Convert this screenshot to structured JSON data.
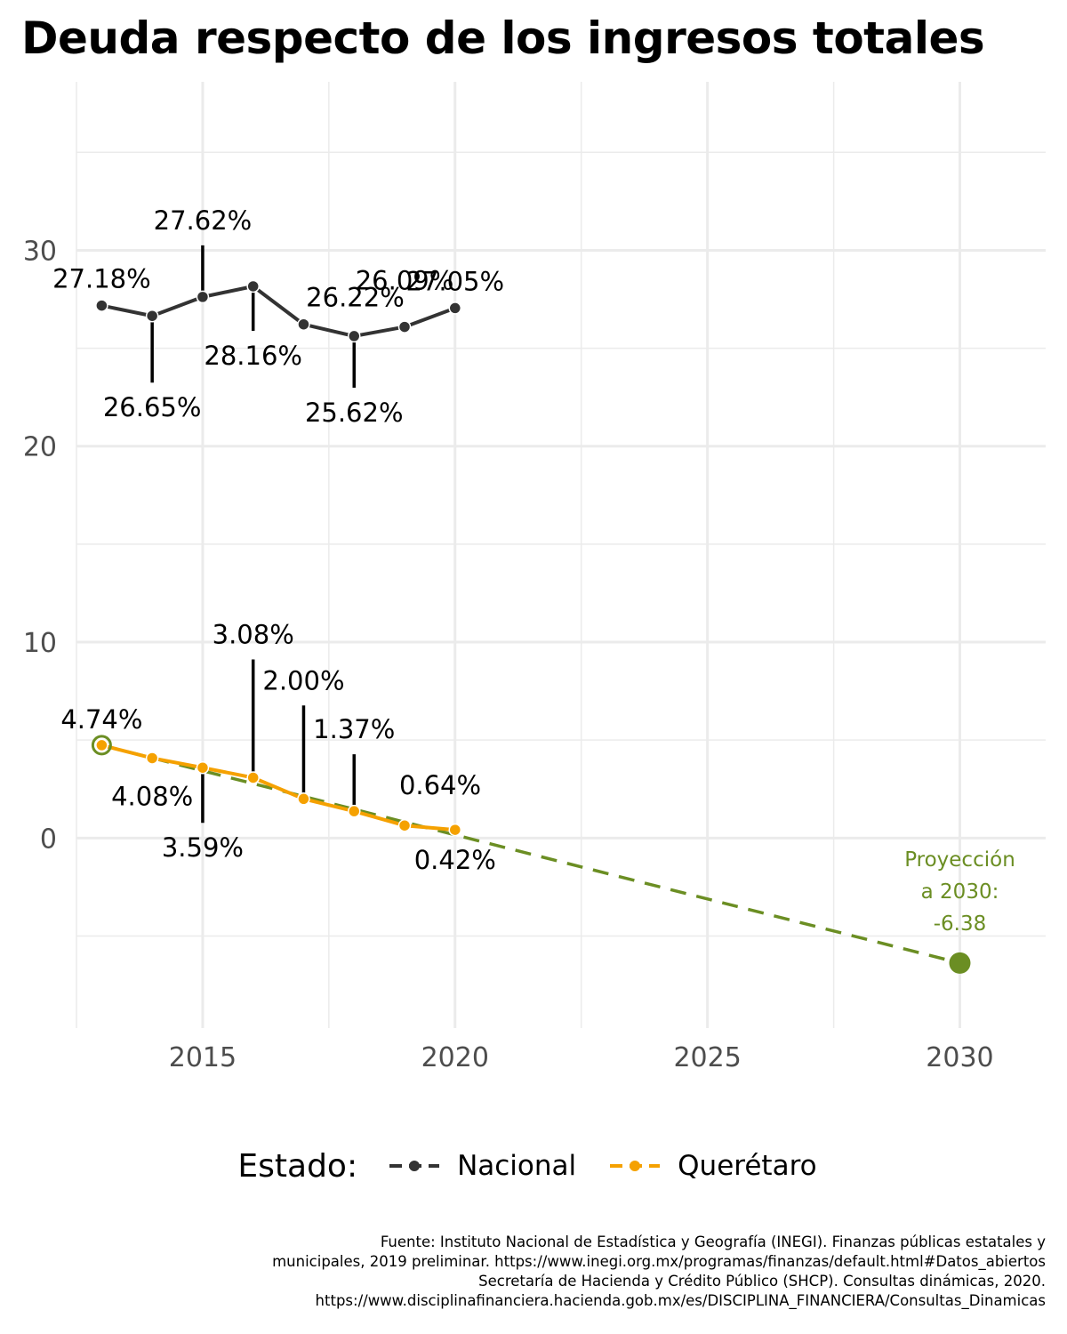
{
  "title": "Deuda respecto de los ingresos totales",
  "chart_data": {
    "type": "line",
    "title": "Deuda respecto de los ingresos totales",
    "xlabel": "",
    "ylabel": "",
    "xlim": [
      2012.5,
      2031.7
    ],
    "ylim": [
      -9.7,
      38.6
    ],
    "x_ticks": [
      2015,
      2020,
      2025,
      2030
    ],
    "y_ticks": [
      0,
      10,
      20,
      30
    ],
    "grid": true,
    "legend_position": "bottom",
    "legend_title": "Estado:",
    "series": [
      {
        "name": "Nacional",
        "color": "#333333",
        "x": [
          2013,
          2014,
          2015,
          2016,
          2017,
          2018,
          2019,
          2020
        ],
        "values": [
          27.18,
          26.65,
          27.62,
          28.16,
          26.22,
          25.62,
          26.09,
          27.05
        ],
        "labels": [
          "27.18%",
          "26.65%",
          "27.62%",
          "28.16%",
          "26.22%",
          "25.62%",
          "26.09%",
          "27.05%"
        ]
      },
      {
        "name": "Querétaro",
        "color": "#F5A100",
        "x": [
          2013,
          2014,
          2015,
          2016,
          2017,
          2018,
          2019,
          2020
        ],
        "values": [
          4.74,
          4.08,
          3.59,
          3.08,
          2.0,
          1.37,
          0.64,
          0.42
        ],
        "labels": [
          "4.74%",
          "4.08%",
          "3.59%",
          "3.08%",
          "2.00%",
          "1.37%",
          "0.64%",
          "0.42%"
        ]
      }
    ],
    "projection": {
      "color": "#6B8E23",
      "from": {
        "x": 2013,
        "y": 4.74
      },
      "to": {
        "x": 2030,
        "y": -6.38
      },
      "label_lines": [
        "Proyección",
        "a 2030:",
        "-6.38"
      ]
    }
  },
  "caption_lines": [
    "Fuente: Instituto Nacional de Estadística y Geografía (INEGI). Finanzas públicas estatales y",
    "municipales, 2019 preliminar. https://www.inegi.org.mx/programas/finanzas/default.html#Datos_abiertos",
    "Secretaría de Hacienda y Crédito Público (SHCP). Consultas dinámicas, 2020.",
    "https://www.disciplinafinanciera.hacienda.gob.mx/es/DISCIPLINA_FINANCIERA/Consultas_Dinamicas"
  ]
}
